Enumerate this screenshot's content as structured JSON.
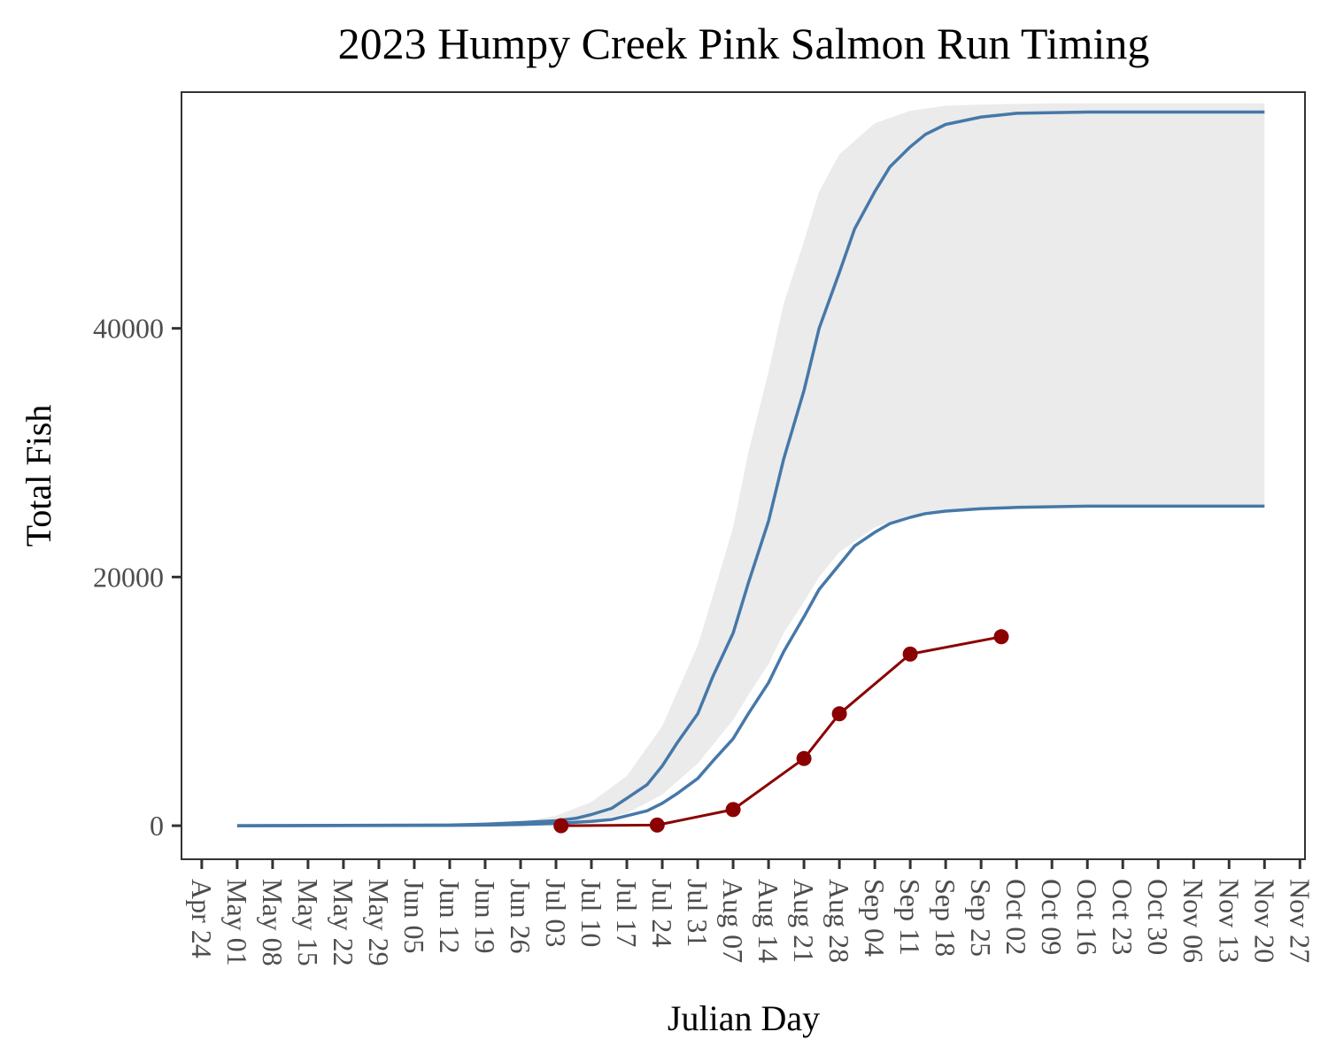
{
  "chart_data": {
    "type": "line",
    "title": "2023 Humpy Creek Pink Salmon Run Timing",
    "xlabel": "Julian Day",
    "ylabel": "Total Fish",
    "xlim": [
      "2023-04-20",
      "2023-11-28"
    ],
    "ylim": [
      -2700,
      59000
    ],
    "yticks": [
      0,
      20000,
      40000
    ],
    "xticks": [
      "2023-04-24",
      "2023-05-01",
      "2023-05-08",
      "2023-05-15",
      "2023-05-22",
      "2023-05-29",
      "2023-06-05",
      "2023-06-12",
      "2023-06-19",
      "2023-06-26",
      "2023-07-03",
      "2023-07-10",
      "2023-07-17",
      "2023-07-24",
      "2023-07-31",
      "2023-08-07",
      "2023-08-14",
      "2023-08-21",
      "2023-08-28",
      "2023-09-04",
      "2023-09-11",
      "2023-09-18",
      "2023-09-25",
      "2023-10-02",
      "2023-10-09",
      "2023-10-16",
      "2023-10-23",
      "2023-10-30",
      "2023-11-06",
      "2023-11-13",
      "2023-11-20",
      "2023-11-27"
    ],
    "xtick_labels": [
      "Apr 24",
      "May 01",
      "May 08",
      "May 15",
      "May 22",
      "May 29",
      "Jun 05",
      "Jun 12",
      "Jun 19",
      "Jun 26",
      "Jul 03",
      "Jul 10",
      "Jul 17",
      "Jul 24",
      "Jul 31",
      "Aug 07",
      "Aug 14",
      "Aug 21",
      "Aug 28",
      "Sep 04",
      "Sep 11",
      "Sep 18",
      "Sep 25",
      "Oct 02",
      "Oct 09",
      "Oct 16",
      "Oct 23",
      "Oct 30",
      "Nov 06",
      "Nov 13",
      "Nov 20",
      "Nov 27"
    ],
    "grid": false,
    "ribbon": {
      "color": "#ebebeb",
      "x": [
        "2023-05-01",
        "2023-06-19",
        "2023-06-26",
        "2023-07-03",
        "2023-07-10",
        "2023-07-17",
        "2023-07-24",
        "2023-07-31",
        "2023-08-03",
        "2023-08-07",
        "2023-08-10",
        "2023-08-14",
        "2023-08-17",
        "2023-08-21",
        "2023-08-24",
        "2023-08-28",
        "2023-09-04",
        "2023-09-11",
        "2023-09-18",
        "2023-09-25",
        "2023-10-09",
        "2023-11-20"
      ],
      "upper": [
        0,
        100,
        300,
        800,
        1900,
        4000,
        8000,
        14500,
        18500,
        24000,
        30000,
        36500,
        42000,
        47000,
        51000,
        54000,
        56500,
        57500,
        57900,
        58000,
        58100,
        58100
      ],
      "lower": [
        0,
        0,
        20,
        80,
        300,
        1000,
        2500,
        5000,
        6500,
        8500,
        10500,
        13000,
        15500,
        18000,
        20000,
        22000,
        24000,
        25000,
        25400,
        25600,
        25700,
        25700
      ]
    },
    "series": [
      {
        "color": "#4678a8",
        "x": [
          "2023-05-01",
          "2023-06-12",
          "2023-06-19",
          "2023-06-26",
          "2023-07-03",
          "2023-07-07",
          "2023-07-10",
          "2023-07-14",
          "2023-07-17",
          "2023-07-21",
          "2023-07-24",
          "2023-07-27",
          "2023-07-31",
          "2023-08-03",
          "2023-08-07",
          "2023-08-10",
          "2023-08-14",
          "2023-08-17",
          "2023-08-21",
          "2023-08-24",
          "2023-08-28",
          "2023-08-31",
          "2023-09-04",
          "2023-09-07",
          "2023-09-11",
          "2023-09-14",
          "2023-09-18",
          "2023-09-25",
          "2023-10-02",
          "2023-10-16",
          "2023-11-20"
        ],
        "values": [
          0,
          50,
          120,
          250,
          400,
          600,
          900,
          1400,
          2200,
          3300,
          4800,
          6700,
          9000,
          12000,
          15500,
          19500,
          24500,
          29500,
          35000,
          40000,
          44500,
          48000,
          51000,
          53000,
          54600,
          55600,
          56400,
          57000,
          57300,
          57400,
          57400
        ]
      },
      {
        "color": "#4678a8",
        "x": [
          "2023-05-01",
          "2023-06-12",
          "2023-06-19",
          "2023-06-26",
          "2023-07-03",
          "2023-07-10",
          "2023-07-14",
          "2023-07-17",
          "2023-07-21",
          "2023-07-24",
          "2023-07-27",
          "2023-07-31",
          "2023-08-03",
          "2023-08-07",
          "2023-08-10",
          "2023-08-14",
          "2023-08-17",
          "2023-08-21",
          "2023-08-24",
          "2023-08-28",
          "2023-08-31",
          "2023-09-04",
          "2023-09-07",
          "2023-09-11",
          "2023-09-14",
          "2023-09-18",
          "2023-09-25",
          "2023-10-02",
          "2023-10-16",
          "2023-11-20"
        ],
        "values": [
          0,
          20,
          50,
          100,
          180,
          350,
          500,
          800,
          1200,
          1800,
          2600,
          3800,
          5200,
          7000,
          9000,
          11500,
          14000,
          16800,
          19000,
          21000,
          22500,
          23600,
          24300,
          24800,
          25100,
          25300,
          25500,
          25600,
          25700,
          25700
        ]
      },
      {
        "color": "#8b0000",
        "marker": "circle",
        "x": [
          "2023-07-04",
          "2023-07-23",
          "2023-08-07",
          "2023-08-21",
          "2023-08-28",
          "2023-09-11",
          "2023-09-29"
        ],
        "values": [
          0,
          50,
          1300,
          5400,
          9000,
          13800,
          15200
        ]
      }
    ]
  }
}
